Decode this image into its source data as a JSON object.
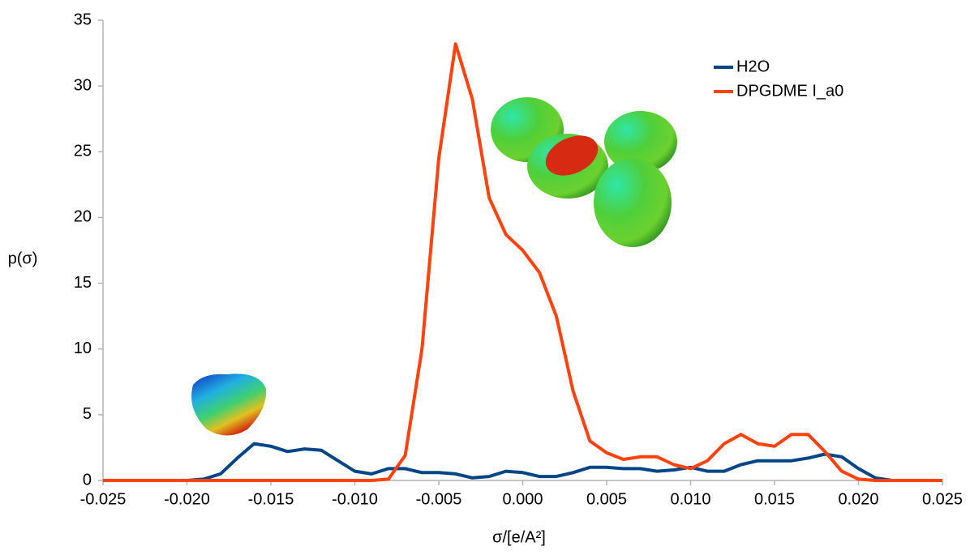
{
  "chart_data": {
    "type": "line",
    "x_label": "σ/[e/A²]",
    "y_label": "p(σ)",
    "x": [
      -0.025,
      -0.024,
      -0.023,
      -0.022,
      -0.021,
      -0.02,
      -0.019,
      -0.018,
      -0.017,
      -0.016,
      -0.015,
      -0.014,
      -0.013,
      -0.012,
      -0.011,
      -0.01,
      -0.009,
      -0.008,
      -0.007,
      -0.006,
      -0.005,
      -0.004,
      -0.003,
      -0.002,
      -0.001,
      0.0,
      0.001,
      0.002,
      0.003,
      0.004,
      0.005,
      0.006,
      0.007,
      0.008,
      0.009,
      0.01,
      0.011,
      0.012,
      0.013,
      0.014,
      0.015,
      0.016,
      0.017,
      0.018,
      0.019,
      0.02,
      0.021,
      0.022,
      0.023,
      0.024,
      0.025
    ],
    "series": [
      {
        "name": "H2O",
        "color": "#004586",
        "values": [
          0,
          0,
          0,
          0,
          0,
          0,
          0.1,
          0.5,
          1.7,
          2.8,
          2.6,
          2.2,
          2.4,
          2.3,
          1.5,
          0.7,
          0.5,
          0.9,
          0.9,
          0.6,
          0.6,
          0.5,
          0.2,
          0.3,
          0.7,
          0.6,
          0.3,
          0.3,
          0.6,
          1.0,
          1.0,
          0.9,
          0.9,
          0.7,
          0.8,
          1.0,
          0.7,
          0.7,
          1.2,
          1.5,
          1.5,
          1.5,
          1.7,
          2.0,
          1.8,
          0.9,
          0.2,
          0,
          0,
          0,
          0
        ]
      },
      {
        "name": "DPGDME I_a0",
        "color": "#ff420e",
        "values": [
          0,
          0,
          0,
          0,
          0,
          0,
          0,
          0,
          0,
          0,
          0,
          0,
          0,
          0,
          0,
          0,
          0,
          0.1,
          1.9,
          10,
          24.5,
          33.2,
          29,
          21.5,
          18.7,
          17.5,
          15.8,
          12.5,
          6.8,
          3,
          2.1,
          1.6,
          1.8,
          1.8,
          1.2,
          0.9,
          1.5,
          2.8,
          3.5,
          2.8,
          2.6,
          3.5,
          3.5,
          2.2,
          0.7,
          0.1,
          0,
          0,
          0,
          0,
          0
        ]
      }
    ],
    "xlim": [
      -0.025,
      0.025
    ],
    "xticks": [
      -0.025,
      {
        "value": -0.02,
        "label": "-0.020"
      },
      -0.015,
      {
        "value": -0.01,
        "label": "-0.010"
      },
      -0.005,
      {
        "value": 0,
        "label": "0.000"
      },
      0.005,
      {
        "value": 0.01,
        "label": "0.010"
      },
      0.015,
      {
        "value": 0.02,
        "label": "0.020"
      },
      0.025
    ],
    "ylim": [
      0,
      35
    ],
    "yticks": [
      0,
      5,
      10,
      15,
      20,
      25,
      30,
      35
    ],
    "grid": false,
    "legend": "top-right"
  }
}
